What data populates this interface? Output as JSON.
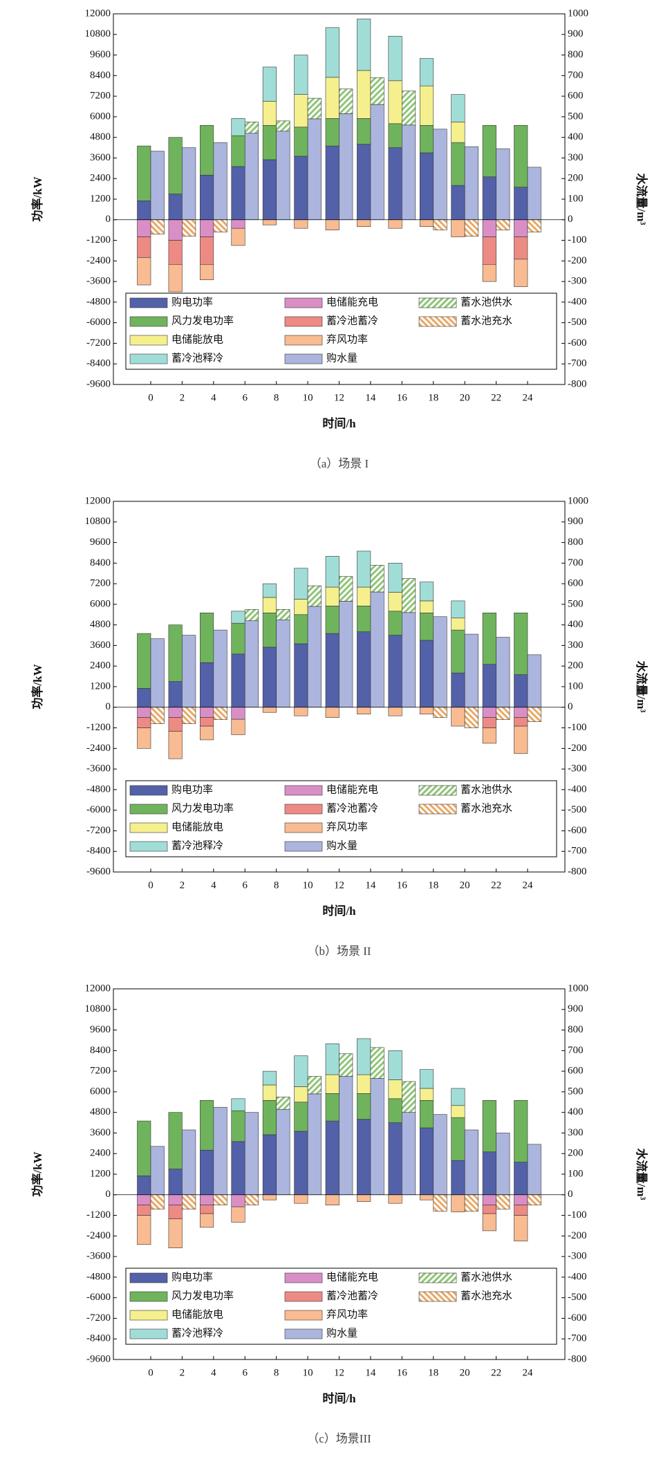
{
  "chart_data": [
    {
      "type": "bar",
      "caption": "（a）场景 I",
      "x_label": "时间/h",
      "y_label": "功率/kW",
      "y2_label": "水流量/m³",
      "categories": [
        "0",
        "2",
        "4",
        "6",
        "8",
        "10",
        "12",
        "14",
        "16",
        "18",
        "20",
        "22",
        "24"
      ],
      "ylim": [
        -9600,
        12000
      ],
      "yticks": [
        -9600,
        -8400,
        -7200,
        -6000,
        -4800,
        -3600,
        -2400,
        -1200,
        0,
        1200,
        2400,
        3600,
        4800,
        6000,
        7200,
        8400,
        9600,
        10800,
        12000
      ],
      "y2lim": [
        -800,
        1000
      ],
      "y2ticks": [
        -800,
        -700,
        -600,
        -500,
        -400,
        -300,
        -200,
        -100,
        0,
        100,
        200,
        300,
        400,
        500,
        600,
        700,
        800,
        900,
        1000
      ],
      "series": [
        {
          "name": "购电功率",
          "color": "#5361a9",
          "values": [
            1100,
            1500,
            2600,
            3100,
            3500,
            3700,
            4300,
            4400,
            4200,
            3900,
            2000,
            2500,
            1900
          ]
        },
        {
          "name": "风力发电功率",
          "color": "#6fb45c",
          "values": [
            3200,
            3300,
            2900,
            1800,
            2000,
            1700,
            1600,
            1500,
            1400,
            1600,
            2500,
            3000,
            3600
          ]
        },
        {
          "name": "电储能放电",
          "color": "#f5ef8e",
          "values": [
            0,
            0,
            0,
            0,
            1400,
            1900,
            2400,
            2800,
            2500,
            2300,
            1200,
            0,
            0
          ]
        },
        {
          "name": "蓄冷池释冷",
          "color": "#a1ddd7",
          "values": [
            0,
            0,
            0,
            1000,
            2000,
            2300,
            2900,
            3000,
            2600,
            1600,
            1600,
            0,
            0
          ]
        },
        {
          "name": "电储能充电",
          "color": "#d98fc6",
          "values": [
            -1000,
            -1200,
            -1000,
            -500,
            0,
            0,
            0,
            0,
            0,
            0,
            0,
            -1000,
            -1000
          ]
        },
        {
          "name": "蓄冷池蓄冷",
          "color": "#ee8a84",
          "values": [
            -1200,
            -1400,
            -1600,
            0,
            0,
            0,
            0,
            0,
            0,
            0,
            0,
            -1600,
            -1300
          ]
        },
        {
          "name": "弃风功率",
          "color": "#f9bb91",
          "values": [
            -1600,
            -1600,
            -900,
            -1000,
            -300,
            -500,
            -600,
            -400,
            -500,
            -400,
            -1000,
            -1000,
            -1600
          ]
        },
        {
          "name": "购水量",
          "color": "#abb5dd",
          "axis": "y2",
          "values": [
            333,
            350,
            375,
            420,
            430,
            490,
            515,
            560,
            460,
            440,
            355,
            345,
            255
          ]
        },
        {
          "name": "蓄水池供水",
          "color": "#8fc477",
          "axis": "y2",
          "hatch": "/",
          "values": [
            0,
            0,
            0,
            55,
            50,
            100,
            120,
            130,
            165,
            0,
            0,
            0,
            0
          ]
        },
        {
          "name": "蓄水池充水",
          "color": "#e8a865",
          "axis": "y2",
          "hatch": "\\",
          "values": [
            -70,
            -80,
            -60,
            0,
            0,
            0,
            0,
            0,
            0,
            -50,
            -80,
            -50,
            -60
          ]
        }
      ]
    },
    {
      "type": "bar",
      "caption": "（b）场景 II",
      "x_label": "时间/h",
      "y_label": "功率/kW",
      "y2_label": "水流量/m³",
      "categories": [
        "0",
        "2",
        "4",
        "6",
        "8",
        "10",
        "12",
        "14",
        "16",
        "18",
        "20",
        "22",
        "24"
      ],
      "ylim": [
        -9600,
        12000
      ],
      "yticks": [
        -9600,
        -8400,
        -7200,
        -6000,
        -4800,
        -3600,
        -2400,
        -1200,
        0,
        1200,
        2400,
        3600,
        4800,
        6000,
        7200,
        8400,
        9600,
        10800,
        12000
      ],
      "y2lim": [
        -800,
        1000
      ],
      "y2ticks": [
        -800,
        -700,
        -600,
        -500,
        -400,
        -300,
        -200,
        -100,
        0,
        100,
        200,
        300,
        400,
        500,
        600,
        700,
        800,
        900,
        1000
      ],
      "series": [
        {
          "name": "购电功率",
          "color": "#5361a9",
          "values": [
            1100,
            1500,
            2600,
            3100,
            3500,
            3700,
            4300,
            4400,
            4200,
            3900,
            2000,
            2500,
            1900
          ]
        },
        {
          "name": "风力发电功率",
          "color": "#6fb45c",
          "values": [
            3200,
            3300,
            2900,
            1800,
            2000,
            1700,
            1600,
            1500,
            1400,
            1600,
            2500,
            3000,
            3600
          ]
        },
        {
          "name": "电储能放电",
          "color": "#f5ef8e",
          "values": [
            0,
            0,
            0,
            0,
            900,
            900,
            1100,
            1100,
            1100,
            700,
            700,
            0,
            0
          ]
        },
        {
          "name": "蓄冷池释冷",
          "color": "#a1ddd7",
          "values": [
            0,
            0,
            0,
            700,
            800,
            1800,
            1800,
            2100,
            1700,
            1100,
            1000,
            0,
            0
          ]
        },
        {
          "name": "电储能充电",
          "color": "#d98fc6",
          "values": [
            -600,
            -600,
            -600,
            -700,
            0,
            0,
            0,
            0,
            0,
            0,
            0,
            -600,
            -600
          ]
        },
        {
          "name": "蓄冷池蓄冷",
          "color": "#ee8a84",
          "values": [
            -600,
            -800,
            -500,
            0,
            0,
            0,
            0,
            0,
            0,
            0,
            0,
            -600,
            -500
          ]
        },
        {
          "name": "弃风功率",
          "color": "#f9bb91",
          "values": [
            -1200,
            -1600,
            -800,
            -900,
            -300,
            -500,
            -600,
            -400,
            -500,
            -400,
            -1100,
            -900,
            -1600
          ]
        },
        {
          "name": "购水量",
          "color": "#abb5dd",
          "axis": "y2",
          "values": [
            333,
            350,
            375,
            420,
            425,
            490,
            515,
            560,
            460,
            440,
            355,
            340,
            255
          ]
        },
        {
          "name": "蓄水池供水",
          "color": "#8fc477",
          "axis": "y2",
          "hatch": "/",
          "values": [
            0,
            0,
            0,
            55,
            50,
            100,
            120,
            130,
            165,
            0,
            0,
            0,
            0
          ]
        },
        {
          "name": "蓄水池充水",
          "color": "#e8a865",
          "axis": "y2",
          "hatch": "\\",
          "values": [
            -80,
            -80,
            -60,
            0,
            0,
            0,
            0,
            0,
            0,
            -50,
            -100,
            -60,
            -70
          ]
        }
      ]
    },
    {
      "type": "bar",
      "caption": "（c）场景III",
      "x_label": "时间/h",
      "y_label": "功率/kW",
      "y2_label": "水流量/m³",
      "categories": [
        "0",
        "2",
        "4",
        "6",
        "8",
        "10",
        "12",
        "14",
        "16",
        "18",
        "20",
        "22",
        "24"
      ],
      "ylim": [
        -9600,
        12000
      ],
      "yticks": [
        -9600,
        -8400,
        -7200,
        -6000,
        -4800,
        -3600,
        -2400,
        -1200,
        0,
        1200,
        2400,
        3600,
        4800,
        6000,
        7200,
        8400,
        9600,
        10800,
        12000
      ],
      "y2lim": [
        -800,
        1000
      ],
      "y2ticks": [
        -800,
        -700,
        -600,
        -500,
        -400,
        -300,
        -200,
        -100,
        0,
        100,
        200,
        300,
        400,
        500,
        600,
        700,
        800,
        900,
        1000
      ],
      "series": [
        {
          "name": "购电功率",
          "color": "#5361a9",
          "values": [
            1100,
            1500,
            2600,
            3100,
            3500,
            3700,
            4300,
            4400,
            4200,
            3900,
            2000,
            2500,
            1900
          ]
        },
        {
          "name": "风力发电功率",
          "color": "#6fb45c",
          "values": [
            3200,
            3300,
            2900,
            1800,
            2000,
            1700,
            1600,
            1500,
            1400,
            1600,
            2500,
            3000,
            3600
          ]
        },
        {
          "name": "电储能放电",
          "color": "#f5ef8e",
          "values": [
            0,
            0,
            0,
            0,
            900,
            900,
            1100,
            1100,
            1100,
            700,
            700,
            0,
            0
          ]
        },
        {
          "name": "蓄冷池释冷",
          "color": "#a1ddd7",
          "values": [
            0,
            0,
            0,
            700,
            800,
            1800,
            1800,
            2100,
            1700,
            1100,
            1000,
            0,
            0
          ]
        },
        {
          "name": "电储能充电",
          "color": "#d98fc6",
          "values": [
            -600,
            -600,
            -600,
            -700,
            0,
            0,
            0,
            0,
            0,
            0,
            0,
            -600,
            -600
          ]
        },
        {
          "name": "蓄冷池蓄冷",
          "color": "#ee8a84",
          "values": [
            -600,
            -800,
            -500,
            0,
            0,
            0,
            0,
            0,
            0,
            0,
            0,
            -500,
            -600
          ]
        },
        {
          "name": "弃风功率",
          "color": "#f9bb91",
          "values": [
            -1700,
            -1700,
            -800,
            -900,
            -300,
            -500,
            -600,
            -400,
            -500,
            -300,
            -1000,
            -1000,
            -1500
          ]
        },
        {
          "name": "购水量",
          "color": "#abb5dd",
          "axis": "y2",
          "values": [
            235,
            315,
            425,
            400,
            415,
            490,
            575,
            565,
            400,
            390,
            315,
            300,
            245
          ]
        },
        {
          "name": "蓄水池供水",
          "color": "#8fc477",
          "axis": "y2",
          "hatch": "/",
          "values": [
            0,
            0,
            0,
            0,
            60,
            85,
            110,
            150,
            150,
            0,
            0,
            0,
            0
          ]
        },
        {
          "name": "蓄水池充水",
          "color": "#e8a865",
          "axis": "y2",
          "hatch": "\\",
          "values": [
            -70,
            -70,
            -50,
            -50,
            0,
            0,
            0,
            0,
            0,
            -80,
            -80,
            -70,
            -50
          ]
        }
      ]
    }
  ]
}
